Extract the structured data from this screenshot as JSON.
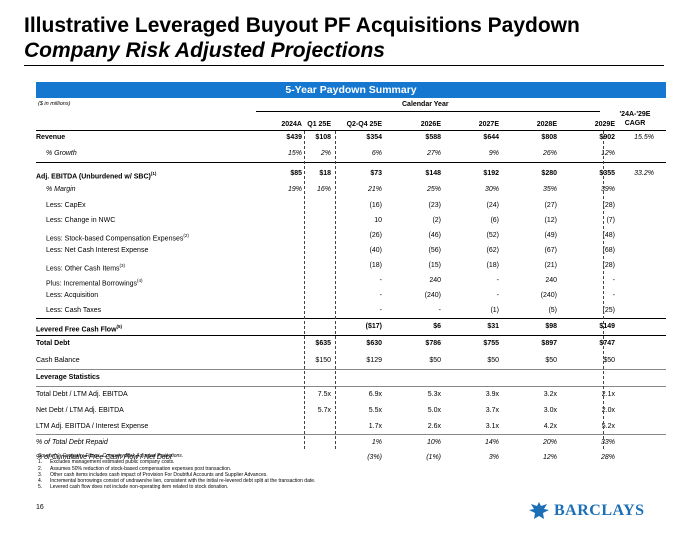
{
  "title": "Illustrative Leveraged Buyout PF Acquisitions Paydown",
  "subtitle": "Company Risk Adjusted Projections",
  "banner": "5-Year Paydown Summary",
  "units": "($ in millions)",
  "calendar_year": "Calendar Year",
  "cagr_header": [
    "'24A-'29E",
    "CAGR"
  ],
  "columns": [
    "2024A",
    "Q1 25E",
    "Q2-Q4 25E",
    "2026E",
    "2027E",
    "2028E",
    "2029E"
  ],
  "rows": [
    {
      "label": "Revenue",
      "style": "bold",
      "values": [
        "$439",
        "$108",
        "$354",
        "$588",
        "$644",
        "$808",
        "$902"
      ],
      "cagr": "15.5%"
    },
    {
      "label": "% Growth",
      "style": "it-ind",
      "values": [
        "15%",
        "2%",
        "6%",
        "27%",
        "9%",
        "26%",
        "12%"
      ],
      "cagr": ""
    },
    {
      "label": "Adj. EBITDA (Unburdened w/ SBC)",
      "sup": "(1)",
      "style": "bold",
      "values": [
        "$85",
        "$18",
        "$73",
        "$148",
        "$192",
        "$280",
        "$355"
      ],
      "cagr": "33.2%"
    },
    {
      "label": "% Margin",
      "style": "it-ind",
      "values": [
        "19%",
        "16%",
        "21%",
        "25%",
        "30%",
        "35%",
        "39%"
      ],
      "cagr": ""
    },
    {
      "label": "Less: CapEx",
      "style": "ind",
      "values": [
        "",
        "",
        "(16)",
        "(23)",
        "(24)",
        "(27)",
        "(28)"
      ],
      "cagr": ""
    },
    {
      "label": "Less: Change in NWC",
      "style": "ind",
      "values": [
        "",
        "",
        "10",
        "(2)",
        "(6)",
        "(12)",
        "(7)"
      ],
      "cagr": ""
    },
    {
      "label": "Less: Stock-based Compensation Expenses",
      "sup": "(2)",
      "style": "ind",
      "values": [
        "",
        "",
        "(26)",
        "(46)",
        "(52)",
        "(49)",
        "(48)"
      ],
      "cagr": ""
    },
    {
      "label": "Less: Net Cash Interest Expense",
      "style": "ind",
      "values": [
        "",
        "",
        "(40)",
        "(56)",
        "(62)",
        "(67)",
        "(68)"
      ],
      "cagr": ""
    },
    {
      "label": "Less: Other Cash Items",
      "sup": "(3)",
      "style": "ind",
      "values": [
        "",
        "",
        "(18)",
        "(15)",
        "(18)",
        "(21)",
        "(28)"
      ],
      "cagr": ""
    },
    {
      "label": "Plus: Incremental Borrowings",
      "sup": "(4)",
      "style": "ind",
      "values": [
        "",
        "",
        "-",
        "240",
        "-",
        "240",
        "-"
      ],
      "cagr": ""
    },
    {
      "label": "Less: Acquisition",
      "style": "ind",
      "values": [
        "",
        "",
        "-",
        "(240)",
        "-",
        "(240)",
        "-"
      ],
      "cagr": ""
    },
    {
      "label": "Less: Cash Taxes",
      "style": "ind",
      "values": [
        "",
        "",
        "-",
        "-",
        "(1)",
        "(5)",
        "(25)"
      ],
      "cagr": ""
    },
    {
      "label": "Levered Free Cash Flow",
      "sup": "(5)",
      "style": "bold",
      "values": [
        "",
        "",
        "($17)",
        "$6",
        "$31",
        "$98",
        "$149"
      ],
      "cagr": ""
    },
    {
      "label": "Total Debt",
      "style": "bold",
      "values": [
        "",
        "$635",
        "$630",
        "$786",
        "$755",
        "$897",
        "$747"
      ],
      "cagr": ""
    },
    {
      "label": "Cash Balance",
      "style": "",
      "values": [
        "",
        "$150",
        "$129",
        "$50",
        "$50",
        "$50",
        "$50"
      ],
      "cagr": ""
    },
    {
      "label": "Leverage Statistics",
      "style": "bold",
      "values": [
        "",
        "",
        "",
        "",
        "",
        "",
        ""
      ],
      "cagr": ""
    },
    {
      "label": "Total Debt / LTM Adj. EBITDA",
      "style": "",
      "values": [
        "",
        "7.5x",
        "6.9x",
        "5.3x",
        "3.9x",
        "3.2x",
        "2.1x"
      ],
      "cagr": ""
    },
    {
      "label": "Net Debt / LTM Adj. EBITDA",
      "style": "",
      "values": [
        "",
        "5.7x",
        "5.5x",
        "5.0x",
        "3.7x",
        "3.0x",
        "2.0x"
      ],
      "cagr": ""
    },
    {
      "label": "LTM Adj. EBITDA / Interest Expense",
      "style": "",
      "values": [
        "",
        "",
        "1.7x",
        "2.6x",
        "3.1x",
        "4.2x",
        "5.2x"
      ],
      "cagr": ""
    },
    {
      "label": "% of Total Debt Repaid",
      "style": "it",
      "values": [
        "",
        "",
        "1%",
        "10%",
        "14%",
        "20%",
        "33%"
      ],
      "cagr": ""
    },
    {
      "label": "% of Cumulative Free Cash Flow / Net Debt",
      "style": "it",
      "values": [
        "",
        "",
        "(3%)",
        "(1%)",
        "3%",
        "12%",
        "28%"
      ],
      "cagr": ""
    }
  ],
  "source": "Source(s): Company Filings, Company Risk Adjusted Projections.",
  "notes": [
    {
      "n": "1.",
      "text": "Excludes management estimated public company costs."
    },
    {
      "n": "2.",
      "text": "Assumes 50% reduction of stock-based compensation expenses post transaction."
    },
    {
      "n": "3.",
      "text": "Other cash items includes cash impact of Provision For Doubtful Accounts and Supplier Advances."
    },
    {
      "n": "4.",
      "text": "Incremental borrowings consist of undrawn/ne lien, consistent with the initial re-levered debt split at the transaction date."
    },
    {
      "n": "5.",
      "text": "Levered cash flow does not include non-operating item related to stock donation."
    }
  ],
  "page_number": "16",
  "logo_text": "BARCLAYS",
  "colors": {
    "banner": "#1577d0",
    "logo": "#1c6fb5"
  }
}
